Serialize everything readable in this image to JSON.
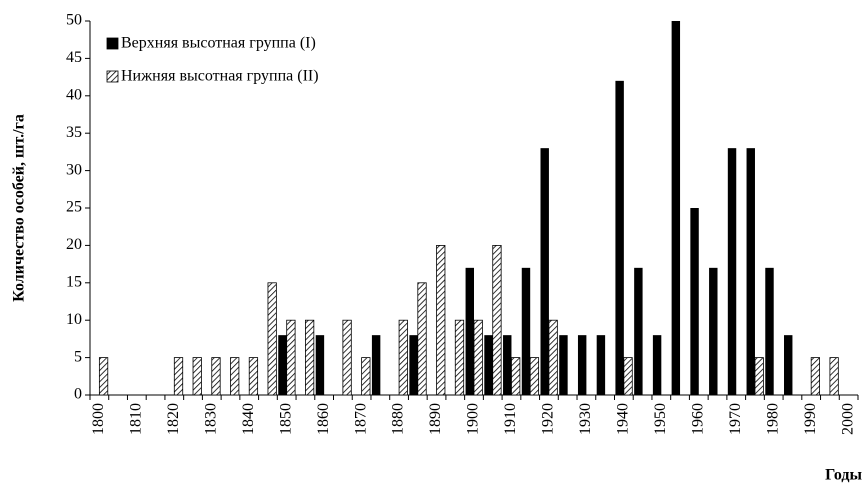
{
  "chart_data": {
    "type": "bar",
    "y_label": "Количество особей, шт./га",
    "x_label": "Годы",
    "categories": [
      "1800",
      null,
      "1810",
      null,
      "1820",
      null,
      "1830",
      null,
      "1840",
      null,
      "1850",
      null,
      "1860",
      null,
      "1870",
      null,
      "1880",
      null,
      "1890",
      null,
      "1900",
      null,
      "1910",
      null,
      "1920",
      null,
      "1930",
      null,
      "1940",
      null,
      "1950",
      null,
      "1960",
      null,
      "1970",
      null,
      "1980",
      null,
      "1990",
      null,
      "2000"
    ],
    "series": [
      {
        "name": "Верхняя высотная группа (I)",
        "color": "#000000",
        "pattern": "solid",
        "values": [
          0,
          0,
          0,
          0,
          0,
          0,
          0,
          0,
          0,
          0,
          8,
          0,
          8,
          0,
          0,
          8,
          0,
          8,
          0,
          0,
          17,
          8,
          8,
          17,
          33,
          8,
          8,
          8,
          42,
          17,
          8,
          50,
          25,
          17,
          33,
          33,
          17,
          8,
          0,
          0,
          0
        ]
      },
      {
        "name": "Нижняя высотная группа (II)",
        "color": "#000000",
        "pattern": "hatch",
        "values": [
          5,
          0,
          0,
          0,
          5,
          5,
          5,
          5,
          5,
          15,
          10,
          10,
          0,
          10,
          5,
          0,
          10,
          15,
          20,
          10,
          10,
          20,
          5,
          5,
          10,
          0,
          0,
          0,
          5,
          0,
          0,
          0,
          0,
          0,
          0,
          5,
          0,
          0,
          5,
          5,
          0
        ]
      }
    ],
    "ylim": [
      0,
      50
    ],
    "yticks": [
      0,
      5,
      10,
      15,
      20,
      25,
      30,
      35,
      40,
      45,
      50
    ],
    "grid": false,
    "legend": "top-left"
  }
}
